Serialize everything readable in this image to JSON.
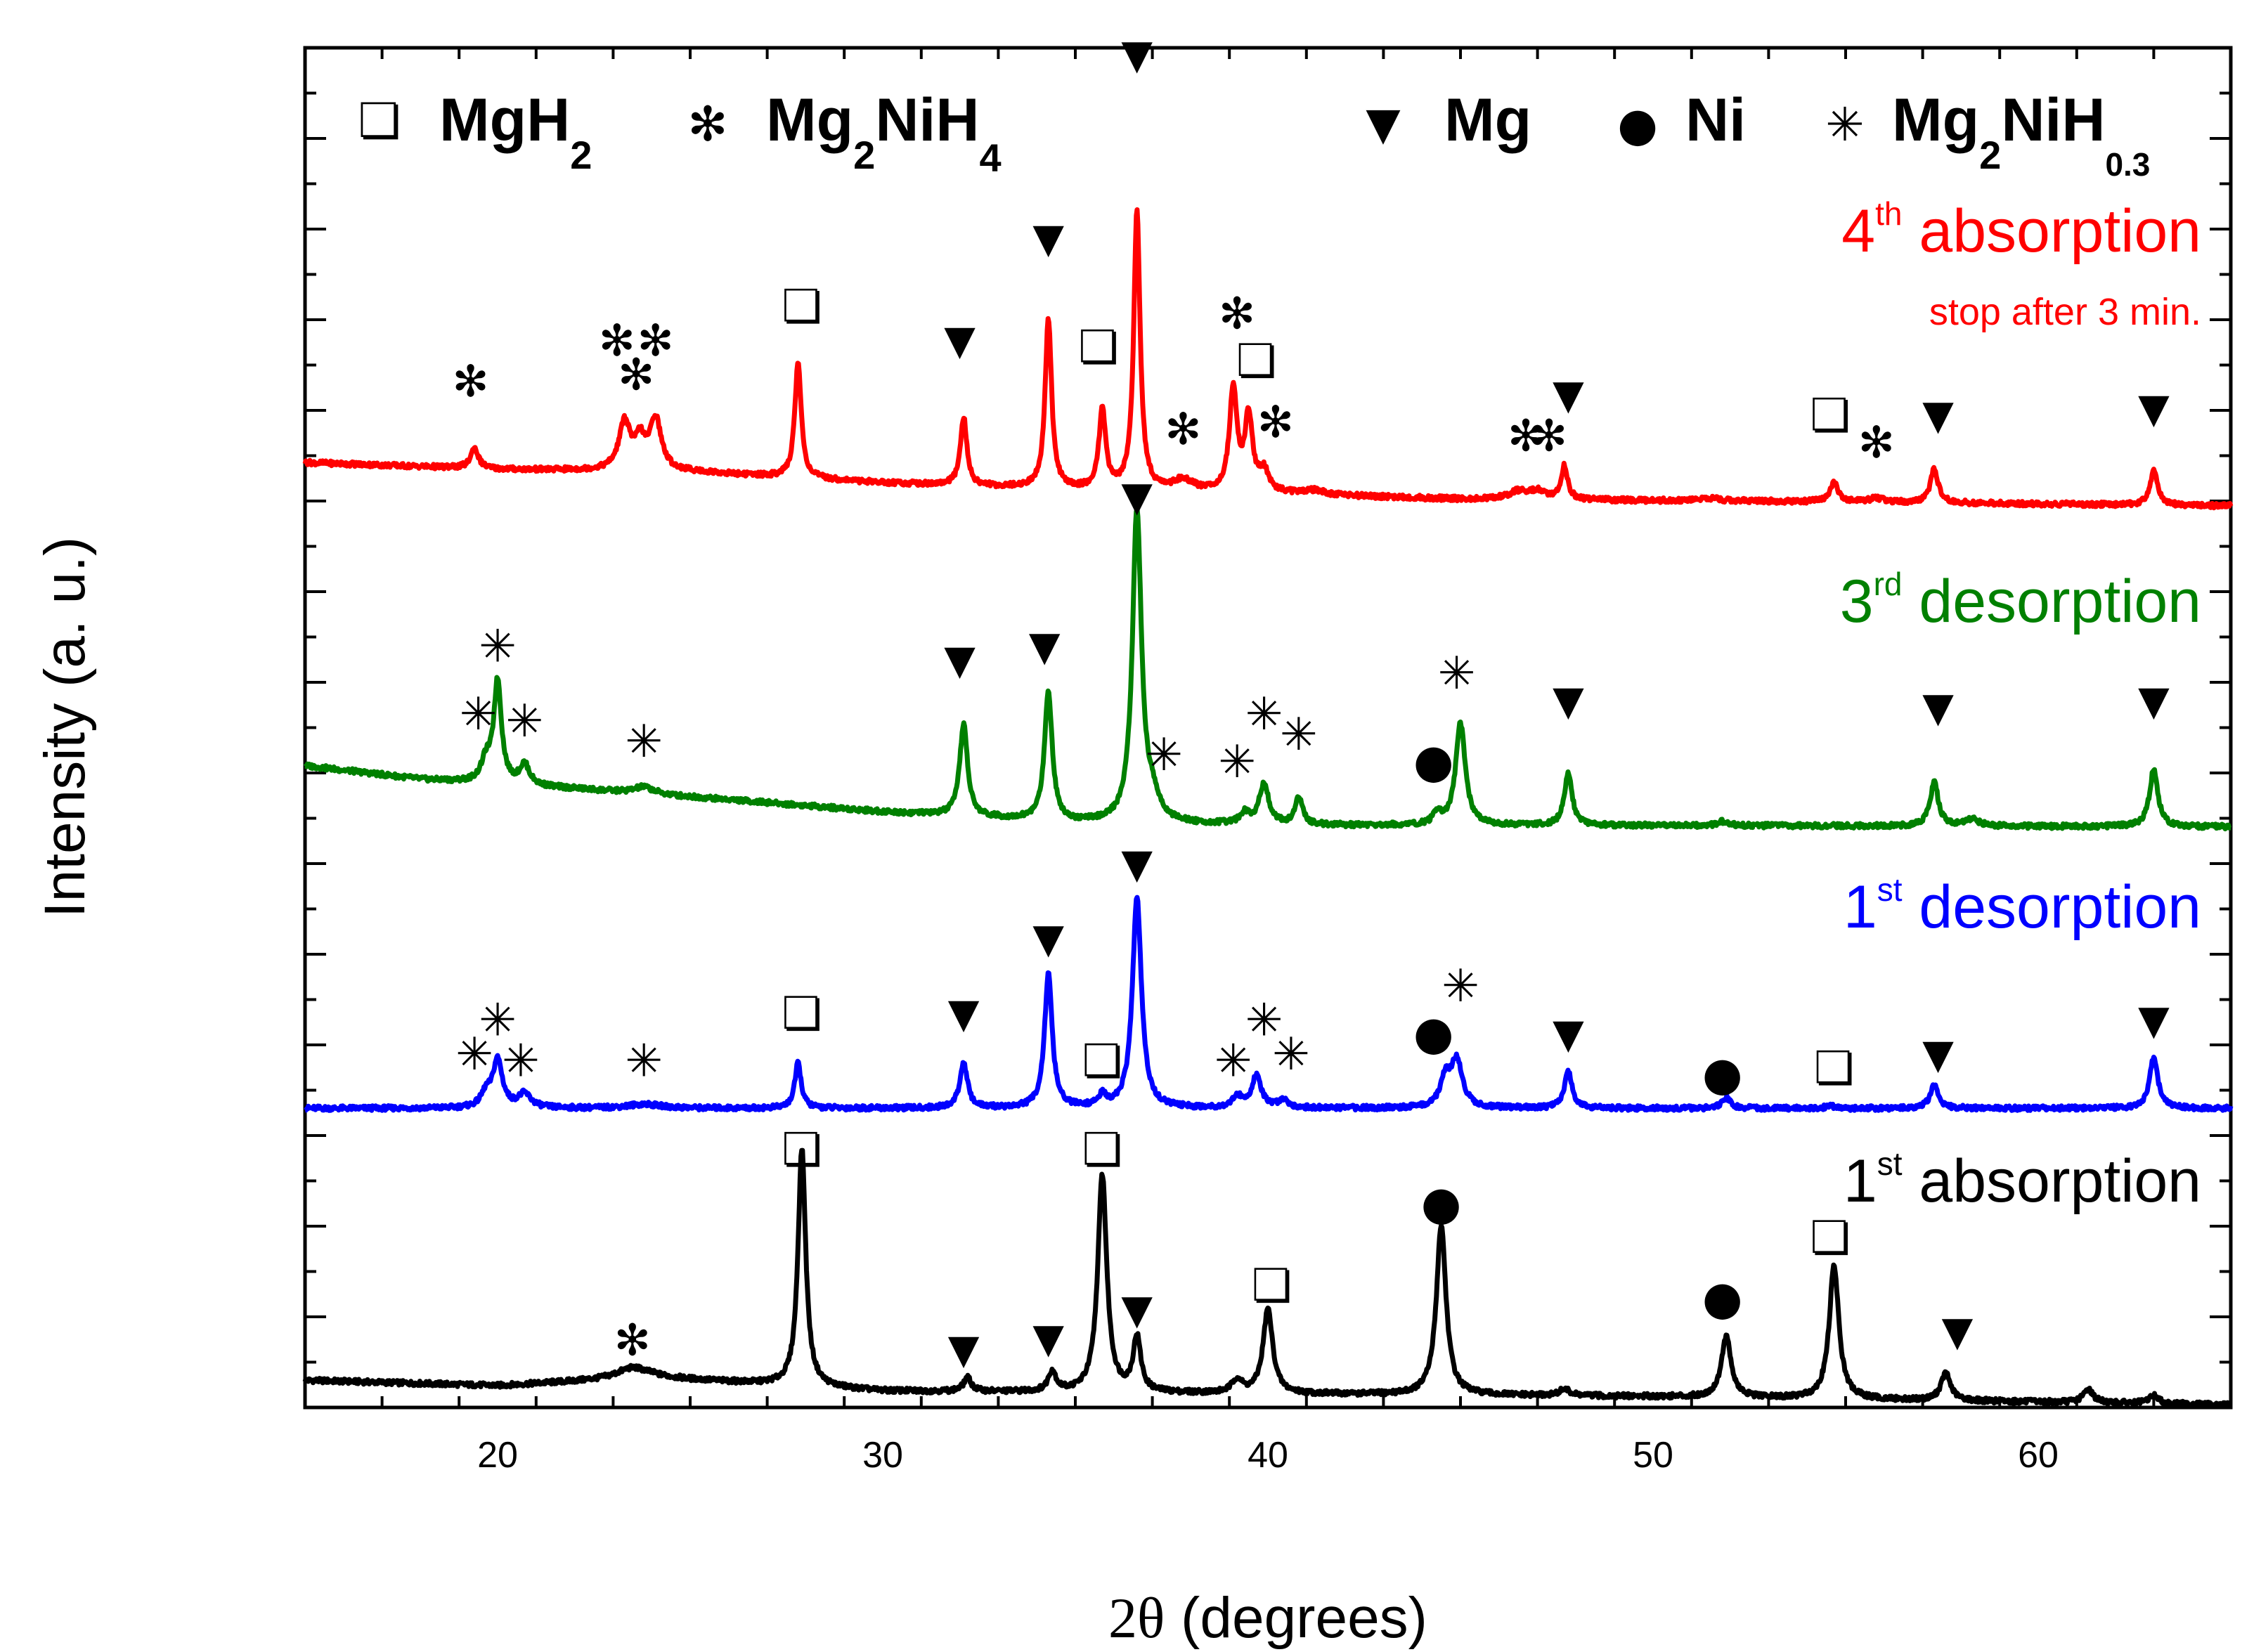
{
  "chart_data": {
    "type": "line",
    "xlabel_prefix": "2θ",
    "xlabel_rest": " (degrees)",
    "ylabel": "Intensity (a. u.)",
    "xlim": [
      15,
      65
    ],
    "ylim": [
      0,
      10
    ],
    "x_ticks": [
      20,
      30,
      40,
      50,
      60
    ],
    "x_tick_labels": [
      "20",
      "30",
      "40",
      "50",
      "60"
    ],
    "y_tick_labels_shown": false,
    "legend": {
      "placement": "top",
      "entries": [
        {
          "symbol": "❏",
          "marker": "square",
          "name": "MgH",
          "sub": "2",
          "sub2": ""
        },
        {
          "symbol": "✻",
          "marker": "star-bold",
          "name": "Mg",
          "sub": "2",
          "mid": "NiH",
          "sub2": "4"
        },
        {
          "symbol": "▼",
          "marker": "triangle",
          "name": "Mg",
          "sub": "",
          "sub2": ""
        },
        {
          "symbol": "●",
          "marker": "circle",
          "name": "Ni",
          "sub": "",
          "sub2": ""
        },
        {
          "symbol": "✳",
          "marker": "star-thin",
          "name": "Mg",
          "sub": "2",
          "mid": "NiH",
          "sub2": "0.3"
        }
      ]
    },
    "series": [
      {
        "name": "1st absorption",
        "label_main": "1",
        "label_sup": "st",
        "label_rest": " absorption",
        "note": "",
        "color": "#000000",
        "baseline": [
          [
            15,
            0.2
          ],
          [
            20,
            0.16
          ],
          [
            24,
            0.22
          ],
          [
            30,
            0.12
          ],
          [
            40,
            0.1
          ],
          [
            50,
            0.08
          ],
          [
            65,
            0.02
          ]
        ],
        "peaks": [
          [
            23.5,
            0.08,
            0.5
          ],
          [
            27.9,
            1.75,
            0.12
          ],
          [
            32.2,
            0.1,
            0.12
          ],
          [
            34.4,
            0.15,
            0.12
          ],
          [
            35.7,
            1.6,
            0.14
          ],
          [
            36.6,
            0.4,
            0.12
          ],
          [
            39.2,
            0.1,
            0.15
          ],
          [
            40.0,
            0.62,
            0.15
          ],
          [
            44.5,
            1.25,
            0.15
          ],
          [
            47.7,
            0.05,
            0.15
          ],
          [
            51.9,
            0.45,
            0.15
          ],
          [
            54.7,
            0.98,
            0.15
          ],
          [
            57.6,
            0.2,
            0.15
          ],
          [
            61.3,
            0.1,
            0.15
          ],
          [
            63.0,
            0.06,
            0.15
          ]
        ],
        "markers": [
          {
            "x": 27.9,
            "y": 1.9,
            "m": "square"
          },
          {
            "x": 35.7,
            "y": 1.9,
            "m": "square"
          },
          {
            "x": 23.5,
            "y": 0.5,
            "m": "star-bold"
          },
          {
            "x": 32.1,
            "y": 0.43,
            "m": "triangle"
          },
          {
            "x": 34.3,
            "y": 0.51,
            "m": "triangle"
          },
          {
            "x": 36.6,
            "y": 0.72,
            "m": "triangle"
          },
          {
            "x": 40.1,
            "y": 0.9,
            "m": "square"
          },
          {
            "x": 44.5,
            "y": 1.5,
            "m": "circle"
          },
          {
            "x": 51.8,
            "y": 0.8,
            "m": "circle"
          },
          {
            "x": 54.6,
            "y": 1.25,
            "m": "square"
          },
          {
            "x": 57.9,
            "y": 0.56,
            "m": "triangle"
          }
        ]
      },
      {
        "name": "1st desorption",
        "label_main": "1",
        "label_sup": "st",
        "label_rest": " desorption",
        "note": "",
        "color": "#0000ff",
        "baseline": [
          [
            15,
            2.2
          ],
          [
            20,
            2.2
          ],
          [
            30,
            2.2
          ],
          [
            40,
            2.2
          ],
          [
            50,
            2.2
          ],
          [
            65,
            2.2
          ]
        ],
        "peaks": [
          [
            19.7,
            0.1,
            0.15
          ],
          [
            20.0,
            0.35,
            0.15
          ],
          [
            20.7,
            0.1,
            0.2
          ],
          [
            23.8,
            0.03,
            0.5
          ],
          [
            27.8,
            0.33,
            0.1
          ],
          [
            32.1,
            0.33,
            0.12
          ],
          [
            34.3,
            0.98,
            0.12
          ],
          [
            35.7,
            0.08,
            0.12
          ],
          [
            36.6,
            1.55,
            0.14
          ],
          [
            39.2,
            0.08,
            0.15
          ],
          [
            39.7,
            0.23,
            0.15
          ],
          [
            40.4,
            0.06,
            0.15
          ],
          [
            44.6,
            0.2,
            0.15
          ],
          [
            44.9,
            0.35,
            0.18
          ],
          [
            47.8,
            0.27,
            0.12
          ],
          [
            51.9,
            0.08,
            0.12
          ],
          [
            54.6,
            0.02,
            0.12
          ],
          [
            57.3,
            0.17,
            0.13
          ],
          [
            63.0,
            0.37,
            0.13
          ]
        ],
        "markers": [
          {
            "x": 20.0,
            "y": 2.85,
            "m": "star-thin"
          },
          {
            "x": 19.4,
            "y": 2.6,
            "m": "star-thin"
          },
          {
            "x": 20.6,
            "y": 2.55,
            "m": "star-thin"
          },
          {
            "x": 23.8,
            "y": 2.55,
            "m": "star-thin"
          },
          {
            "x": 27.9,
            "y": 2.9,
            "m": "square"
          },
          {
            "x": 32.1,
            "y": 2.9,
            "m": "triangle"
          },
          {
            "x": 34.3,
            "y": 3.45,
            "m": "triangle"
          },
          {
            "x": 35.7,
            "y": 2.55,
            "m": "square"
          },
          {
            "x": 36.6,
            "y": 4.0,
            "m": "triangle"
          },
          {
            "x": 39.1,
            "y": 2.55,
            "m": "star-thin"
          },
          {
            "x": 39.9,
            "y": 2.85,
            "m": "star-thin"
          },
          {
            "x": 40.6,
            "y": 2.6,
            "m": "star-thin"
          },
          {
            "x": 44.3,
            "y": 2.75,
            "m": "circle"
          },
          {
            "x": 45.0,
            "y": 3.1,
            "m": "star-thin"
          },
          {
            "x": 47.8,
            "y": 2.75,
            "m": "triangle"
          },
          {
            "x": 51.8,
            "y": 2.45,
            "m": "circle"
          },
          {
            "x": 54.7,
            "y": 2.5,
            "m": "square"
          },
          {
            "x": 57.4,
            "y": 2.6,
            "m": "triangle"
          },
          {
            "x": 63.0,
            "y": 2.85,
            "m": "triangle"
          }
        ]
      },
      {
        "name": "3rd desorption",
        "label_main": "3",
        "label_sup": "rd",
        "label_rest": " desorption",
        "note": "",
        "color": "#008000",
        "baseline": [
          [
            15,
            4.72
          ],
          [
            18,
            4.62
          ],
          [
            22,
            4.55
          ],
          [
            26,
            4.47
          ],
          [
            30,
            4.38
          ],
          [
            35,
            4.3
          ],
          [
            40,
            4.28
          ],
          [
            50,
            4.28
          ],
          [
            65,
            4.27
          ]
        ],
        "peaks": [
          [
            19.7,
            0.15,
            0.15
          ],
          [
            20.0,
            0.75,
            0.12
          ],
          [
            20.7,
            0.15,
            0.15
          ],
          [
            23.8,
            0.05,
            0.3
          ],
          [
            32.1,
            0.68,
            0.12
          ],
          [
            34.3,
            0.95,
            0.12
          ],
          [
            36.6,
            2.3,
            0.14
          ],
          [
            37.0,
            0.15,
            0.2
          ],
          [
            39.4,
            0.08,
            0.15
          ],
          [
            39.9,
            0.3,
            0.15
          ],
          [
            40.8,
            0.2,
            0.12
          ],
          [
            44.4,
            0.08,
            0.12
          ],
          [
            45.0,
            0.75,
            0.15
          ],
          [
            47.8,
            0.38,
            0.12
          ],
          [
            51.8,
            0.03,
            0.15
          ],
          [
            57.3,
            0.32,
            0.13
          ],
          [
            58.3,
            0.05,
            0.2
          ],
          [
            63.0,
            0.42,
            0.13
          ]
        ],
        "markers": [
          {
            "x": 20.0,
            "y": 5.6,
            "m": "star-thin"
          },
          {
            "x": 19.5,
            "y": 5.1,
            "m": "star-thin"
          },
          {
            "x": 20.7,
            "y": 5.05,
            "m": "star-thin"
          },
          {
            "x": 23.8,
            "y": 4.9,
            "m": "star-thin"
          },
          {
            "x": 32.0,
            "y": 5.5,
            "m": "triangle"
          },
          {
            "x": 34.2,
            "y": 5.6,
            "m": "triangle"
          },
          {
            "x": 36.6,
            "y": 6.7,
            "m": "triangle"
          },
          {
            "x": 37.3,
            "y": 4.8,
            "m": "star-thin"
          },
          {
            "x": 39.2,
            "y": 4.75,
            "m": "star-thin"
          },
          {
            "x": 39.9,
            "y": 5.1,
            "m": "star-thin"
          },
          {
            "x": 40.8,
            "y": 4.95,
            "m": "star-thin"
          },
          {
            "x": 44.3,
            "y": 4.75,
            "m": "circle"
          },
          {
            "x": 44.9,
            "y": 5.4,
            "m": "star-thin"
          },
          {
            "x": 47.8,
            "y": 5.2,
            "m": "triangle"
          },
          {
            "x": 57.4,
            "y": 5.15,
            "m": "triangle"
          },
          {
            "x": 63.0,
            "y": 5.2,
            "m": "triangle"
          }
        ]
      },
      {
        "name": "4th absorption",
        "label_main": "4",
        "label_sup": "th",
        "label_rest": " absorption",
        "note": "stop after 3 min.",
        "color": "#ff0000",
        "baseline": [
          [
            15,
            6.95
          ],
          [
            20,
            6.9
          ],
          [
            25,
            6.88
          ],
          [
            30,
            6.8
          ],
          [
            35,
            6.75
          ],
          [
            40,
            6.72
          ],
          [
            45,
            6.68
          ],
          [
            55,
            6.66
          ],
          [
            65,
            6.63
          ]
        ],
        "peaks": [
          [
            19.4,
            0.15,
            0.12
          ],
          [
            23.3,
            0.35,
            0.18
          ],
          [
            23.7,
            0.2,
            0.15
          ],
          [
            24.1,
            0.38,
            0.18
          ],
          [
            27.8,
            0.85,
            0.1
          ],
          [
            32.1,
            0.5,
            0.1
          ],
          [
            34.3,
            1.25,
            0.1
          ],
          [
            35.7,
            0.6,
            0.1
          ],
          [
            36.6,
            2.05,
            0.1
          ],
          [
            37.8,
            0.08,
            0.3
          ],
          [
            39.1,
            0.75,
            0.12
          ],
          [
            39.5,
            0.55,
            0.12
          ],
          [
            39.9,
            0.15,
            0.15
          ],
          [
            41.2,
            0.03,
            0.3
          ],
          [
            46.5,
            0.06,
            0.3
          ],
          [
            47.0,
            0.06,
            0.2
          ],
          [
            47.7,
            0.25,
            0.1
          ],
          [
            51.5,
            0.02,
            0.3
          ],
          [
            54.7,
            0.14,
            0.12
          ],
          [
            55.8,
            0.03,
            0.2
          ],
          [
            57.3,
            0.25,
            0.12
          ],
          [
            63.0,
            0.25,
            0.12
          ]
        ],
        "markers": [
          {
            "x": 19.3,
            "y": 7.55,
            "m": "star-bold"
          },
          {
            "x": 23.1,
            "y": 7.85,
            "m": "star-bold"
          },
          {
            "x": 24.1,
            "y": 7.85,
            "m": "star-bold"
          },
          {
            "x": 23.6,
            "y": 7.6,
            "m": "star-bold"
          },
          {
            "x": 27.9,
            "y": 8.1,
            "m": "square"
          },
          {
            "x": 32.0,
            "y": 7.85,
            "m": "triangle"
          },
          {
            "x": 34.3,
            "y": 8.6,
            "m": "triangle"
          },
          {
            "x": 35.6,
            "y": 7.8,
            "m": "square"
          },
          {
            "x": 36.6,
            "y": 9.95,
            "m": "triangle"
          },
          {
            "x": 37.8,
            "y": 7.2,
            "m": "star-bold"
          },
          {
            "x": 39.2,
            "y": 8.05,
            "m": "star-bold"
          },
          {
            "x": 39.7,
            "y": 7.7,
            "m": "square"
          },
          {
            "x": 40.2,
            "y": 7.25,
            "m": "star-bold"
          },
          {
            "x": 46.7,
            "y": 7.15,
            "m": "star-bold"
          },
          {
            "x": 47.3,
            "y": 7.15,
            "m": "star-bold"
          },
          {
            "x": 47.8,
            "y": 7.45,
            "m": "triangle"
          },
          {
            "x": 54.6,
            "y": 7.3,
            "m": "square"
          },
          {
            "x": 55.8,
            "y": 7.1,
            "m": "star-bold"
          },
          {
            "x": 57.4,
            "y": 7.3,
            "m": "triangle"
          },
          {
            "x": 63.0,
            "y": 7.35,
            "m": "triangle"
          }
        ]
      }
    ]
  }
}
